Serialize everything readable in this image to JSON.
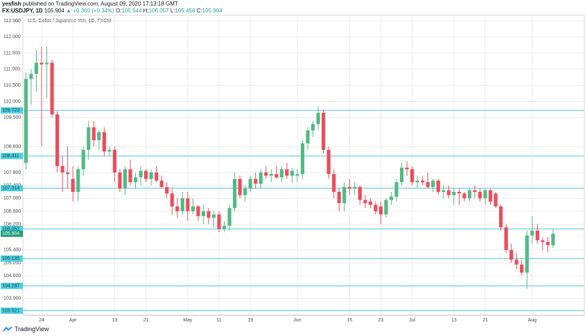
{
  "header": {
    "author": "yesfish",
    "published": "published on TradingView.com, August 09, 2020 17:13:18 GMT",
    "symbol": "FX:USDJPY, 1D",
    "change": "▲ +0.360 (+0.34%)",
    "labels": [
      "O:",
      "H:",
      "L:",
      "C:"
    ]
  },
  "footer": {
    "brand": "TradingView"
  },
  "chart_data": {
    "type": "candlestick",
    "title": "U.S. Dollar / Japanese Yen, 1D, FXCM",
    "up_color": "#53b987",
    "down_color": "#eb4d5c",
    "line_color": "#4ec6d6",
    "grid": true,
    "categories": [
      null,
      null,
      null,
      "24",
      null,
      null,
      null,
      null,
      null,
      "Apr",
      null,
      null,
      null,
      null,
      null,
      null,
      null,
      "13",
      null,
      null,
      null,
      null,
      null,
      "21",
      null,
      null,
      null,
      null,
      null,
      null,
      null,
      "May",
      null,
      null,
      null,
      null,
      null,
      "11",
      null,
      null,
      null,
      null,
      null,
      "19",
      null,
      null,
      null,
      null,
      null,
      null,
      null,
      null,
      "Jun",
      null,
      null,
      null,
      null,
      null,
      null,
      null,
      null,
      null,
      "15",
      null,
      null,
      null,
      null,
      null,
      "23",
      null,
      null,
      null,
      null,
      null,
      "Jul",
      null,
      null,
      null,
      null,
      null,
      null,
      null,
      "13",
      null,
      null,
      null,
      null,
      null,
      "21",
      null,
      null,
      null,
      null,
      null,
      null,
      null,
      null,
      "Aug",
      null,
      null,
      null,
      null
    ],
    "open": [
      108.1,
      110.7,
      110.85,
      111.2,
      111.15,
      111.2,
      109.6,
      108.0,
      107.8,
      107.6,
      107.2,
      107.9,
      108.5,
      109.2,
      108.8,
      109.05,
      108.45,
      108.5,
      107.8,
      107.3,
      107.9,
      107.5,
      107.65,
      107.85,
      107.6,
      107.8,
      107.55,
      107.35,
      107.15,
      106.75,
      106.6,
      107.0,
      106.6,
      106.75,
      106.45,
      106.6,
      106.4,
      106.5,
      106.05,
      106.15,
      106.7,
      107.6,
      107.1,
      107.3,
      107.6,
      107.45,
      107.8,
      107.7,
      107.75,
      107.65,
      107.9,
      107.7,
      107.7,
      107.75,
      108.7,
      109.1,
      109.3,
      109.65,
      108.5,
      107.75,
      107.2,
      106.85,
      107.35,
      107.3,
      107.35,
      106.95,
      106.9,
      106.8,
      106.75,
      106.5,
      106.95,
      107.05,
      107.5,
      107.95,
      107.9,
      107.5,
      107.55,
      107.5,
      107.35,
      107.55,
      107.2,
      107.25,
      107.1,
      107.2,
      107.15,
      107.0,
      107.25,
      107.2,
      107.0,
      107.25,
      107.15,
      106.75,
      106.1,
      105.4,
      105.1,
      104.95,
      104.7,
      105.85,
      106.0,
      105.7,
      105.65,
      105.544
    ],
    "high": [
      110.9,
      111.0,
      111.6,
      111.7,
      111.7,
      111.3,
      109.7,
      108.3,
      108.6,
      108.0,
      108.0,
      108.6,
      109.4,
      109.4,
      109.1,
      109.2,
      108.6,
      108.6,
      107.9,
      108.0,
      108.2,
      107.8,
      108.0,
      107.9,
      107.9,
      108.0,
      107.7,
      107.5,
      107.3,
      107.0,
      107.2,
      107.2,
      107.0,
      106.8,
      106.8,
      106.7,
      106.6,
      106.6,
      106.3,
      106.8,
      107.8,
      107.7,
      107.4,
      107.7,
      107.8,
      107.9,
      108.0,
      107.9,
      108.0,
      108.0,
      108.1,
      107.95,
      107.9,
      108.8,
      109.2,
      109.4,
      109.85,
      109.75,
      108.6,
      107.9,
      107.3,
      107.5,
      107.6,
      107.5,
      107.4,
      107.1,
      107.0,
      106.9,
      106.9,
      107.0,
      107.2,
      107.6,
      108.1,
      108.15,
      108.0,
      107.7,
      107.7,
      107.8,
      107.6,
      107.6,
      107.4,
      107.4,
      107.3,
      107.3,
      107.2,
      107.3,
      107.4,
      107.3,
      107.3,
      107.3,
      107.2,
      106.8,
      106.2,
      105.6,
      105.3,
      105.1,
      106.0,
      106.45,
      106.2,
      105.8,
      105.8,
      106.057
    ],
    "low": [
      107.9,
      109.9,
      110.3,
      108.6,
      110.1,
      109.5,
      107.8,
      107.2,
      107.3,
      106.9,
      106.9,
      107.7,
      108.2,
      108.6,
      108.5,
      108.3,
      108.3,
      107.5,
      107.2,
      107.1,
      107.4,
      107.3,
      107.4,
      107.5,
      107.4,
      107.5,
      107.3,
      107.0,
      106.5,
      106.4,
      106.5,
      106.3,
      106.5,
      106.3,
      106.2,
      106.2,
      106.1,
      105.95,
      105.95,
      106.0,
      106.6,
      107.0,
      106.9,
      107.2,
      107.3,
      107.3,
      107.6,
      107.5,
      107.6,
      107.5,
      107.6,
      107.5,
      107.5,
      107.6,
      108.5,
      108.9,
      109.1,
      108.4,
      107.6,
      107.0,
      106.6,
      106.6,
      107.1,
      107.1,
      106.8,
      106.7,
      106.7,
      106.5,
      106.2,
      106.4,
      106.8,
      106.9,
      107.4,
      107.7,
      107.4,
      107.3,
      107.4,
      107.3,
      107.2,
      107.1,
      107.0,
      107.0,
      106.8,
      106.8,
      106.9,
      106.9,
      107.0,
      106.9,
      106.8,
      106.8,
      106.7,
      106.0,
      105.3,
      105.0,
      104.8,
      104.6,
      104.2,
      105.6,
      105.6,
      105.4,
      105.35,
      105.458
    ],
    "close": [
      110.7,
      110.85,
      111.2,
      111.15,
      111.2,
      109.6,
      108.0,
      107.8,
      107.75,
      107.2,
      107.9,
      108.5,
      109.2,
      108.8,
      109.05,
      108.45,
      108.5,
      107.8,
      107.3,
      107.9,
      107.5,
      107.65,
      107.85,
      107.6,
      107.8,
      107.55,
      107.35,
      107.15,
      106.75,
      106.6,
      107.0,
      106.6,
      106.75,
      106.45,
      106.6,
      106.4,
      106.5,
      106.05,
      106.15,
      106.7,
      107.6,
      107.1,
      107.3,
      107.6,
      107.45,
      107.8,
      107.7,
      107.75,
      107.65,
      107.9,
      107.7,
      107.85,
      107.75,
      108.7,
      109.1,
      109.3,
      109.65,
      108.5,
      107.75,
      107.2,
      106.85,
      107.35,
      107.3,
      107.35,
      106.95,
      106.85,
      106.8,
      106.6,
      106.5,
      106.95,
      107.05,
      107.5,
      107.95,
      107.9,
      107.5,
      107.55,
      107.5,
      107.35,
      107.55,
      107.2,
      107.25,
      107.1,
      107.2,
      107.15,
      107.0,
      107.25,
      107.2,
      107.0,
      107.25,
      106.9,
      106.75,
      106.1,
      105.4,
      105.1,
      104.95,
      104.7,
      105.85,
      106.0,
      105.7,
      105.65,
      105.55,
      105.904
    ],
    "ylim": [
      103.38,
      112.67
    ],
    "yticks": [
      {
        "value": 112.5,
        "label": "112.500"
      },
      {
        "value": 112,
        "label": "112.000"
      },
      {
        "value": 111.5,
        "label": "111.500"
      },
      {
        "value": 111,
        "label": "111.000"
      },
      {
        "value": 110.5,
        "label": "110.500"
      },
      {
        "value": 110,
        "label": "110.000"
      },
      {
        "value": 109.5,
        "label": "109.500"
      },
      {
        "value": 108.6,
        "label": "108.600"
      },
      {
        "value": 107.8,
        "label": "107.800"
      },
      {
        "value": 107.4,
        "label": "107.400"
      },
      {
        "value": 107,
        "label": "107.000"
      },
      {
        "value": 106.6,
        "label": "106.600"
      },
      {
        "value": 106.2,
        "label": "106.200"
      },
      {
        "value": 105.4,
        "label": "105.400"
      },
      {
        "value": 105,
        "label": "105.000"
      },
      {
        "value": 104.6,
        "label": "104.600"
      },
      {
        "value": 103.9,
        "label": "103.900"
      }
    ],
    "price_lines": [
      109.723,
      108.311,
      107.314,
      106.052,
      105.135,
      104.287,
      103.521
    ]
  }
}
